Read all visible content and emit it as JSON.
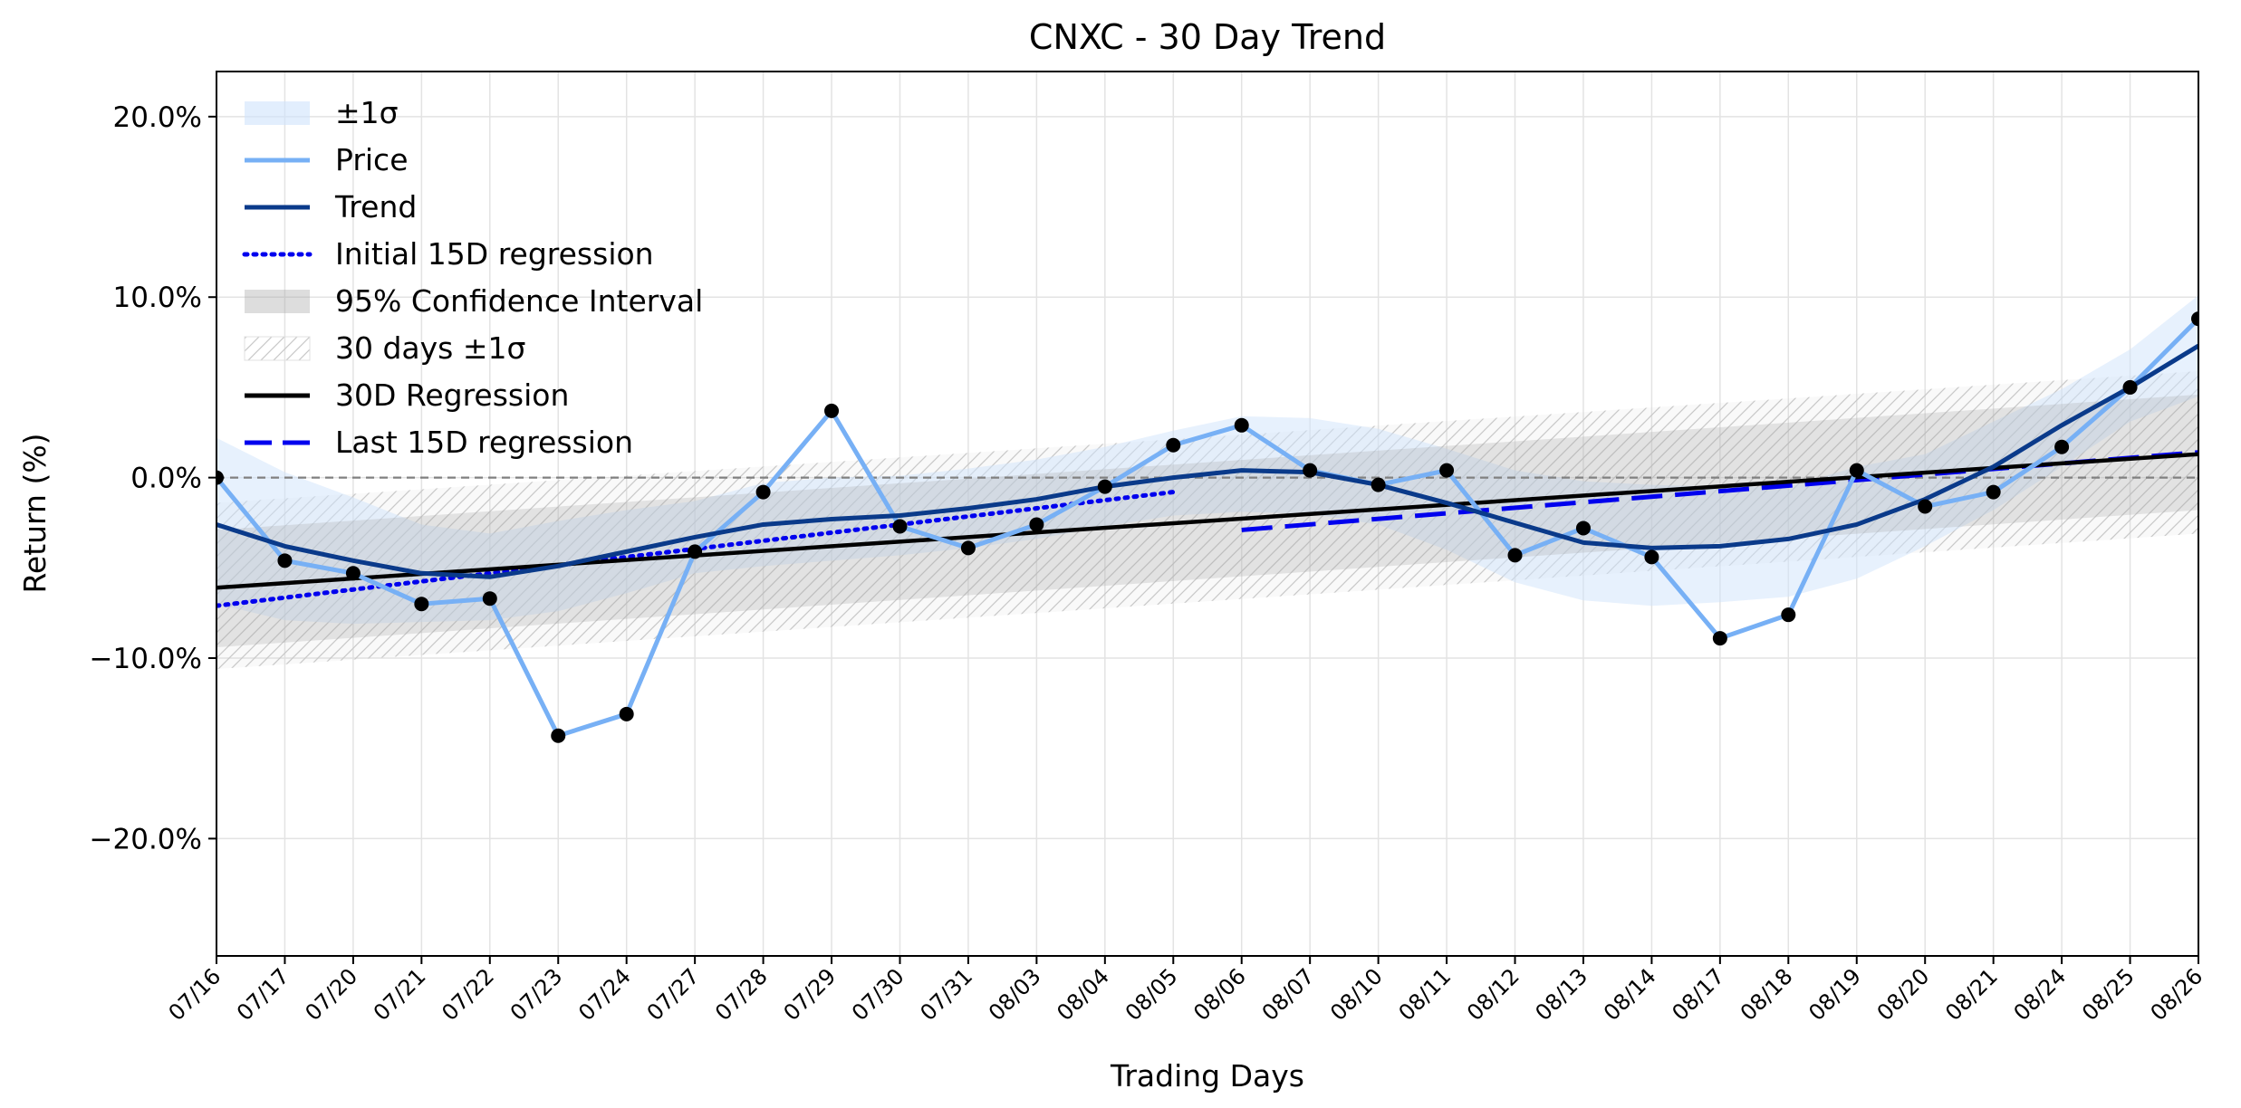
{
  "chart_data": {
    "type": "line",
    "title": "CNXC - 30 Day Trend",
    "xlabel": "Trading Days",
    "ylabel": "Return (%)",
    "ylim": [
      -26.5,
      22.5
    ],
    "yticks": [
      20,
      10,
      0,
      -10,
      -20
    ],
    "ytick_labels": [
      "20.0%",
      "10.0%",
      "0.0%",
      "−10.0%",
      "−20.0%"
    ],
    "grid": true,
    "legend_position": "top-left",
    "x": [
      "07/16",
      "07/17",
      "07/20",
      "07/21",
      "07/22",
      "07/23",
      "07/24",
      "07/27",
      "07/28",
      "07/29",
      "07/30",
      "07/31",
      "08/03",
      "08/04",
      "08/05",
      "08/06",
      "08/07",
      "08/10",
      "08/11",
      "08/12",
      "08/13",
      "08/14",
      "08/17",
      "08/18",
      "08/19",
      "08/20",
      "08/21",
      "08/24",
      "08/25",
      "08/26"
    ],
    "price": [
      0.0,
      -4.6,
      -5.3,
      -7.0,
      -6.7,
      -14.3,
      -13.1,
      -4.1,
      -0.8,
      3.7,
      -2.7,
      -3.9,
      -2.6,
      -0.5,
      1.8,
      2.9,
      0.4,
      -0.4,
      0.4,
      -4.3,
      -2.8,
      -4.4,
      -8.9,
      -7.6,
      0.4,
      -1.6,
      -0.8,
      1.7,
      5.0,
      8.8
    ],
    "trend": [
      -2.6,
      -3.8,
      -4.6,
      -5.3,
      -5.5,
      -4.9,
      -4.1,
      -3.3,
      -2.6,
      -2.3,
      -2.1,
      -1.7,
      -1.2,
      -0.5,
      0.0,
      0.4,
      0.3,
      -0.4,
      -1.4,
      -2.5,
      -3.6,
      -3.9,
      -3.8,
      -3.4,
      -2.6,
      -1.2,
      0.6,
      2.9,
      5.0,
      7.3
    ],
    "band_1sigma": [
      [
        -7.0,
        2.2
      ],
      [
        -7.9,
        0.3
      ],
      [
        -8.1,
        -1.1
      ],
      [
        -8.0,
        -2.6
      ],
      [
        -7.9,
        -3.1
      ],
      [
        -7.4,
        -2.4
      ],
      [
        -6.4,
        -1.8
      ],
      [
        -5.3,
        -1.3
      ],
      [
        -4.9,
        -0.3
      ],
      [
        -4.6,
        0.0
      ],
      [
        -4.3,
        0.1
      ],
      [
        -3.9,
        0.5
      ],
      [
        -3.4,
        1.0
      ],
      [
        -2.7,
        1.7
      ],
      [
        -2.1,
        2.6
      ],
      [
        -1.9,
        3.4
      ],
      [
        -2.0,
        3.3
      ],
      [
        -2.6,
        2.7
      ],
      [
        -4.0,
        1.6
      ],
      [
        -5.8,
        0.4
      ],
      [
        -6.8,
        -0.2
      ],
      [
        -7.1,
        -0.4
      ],
      [
        -6.9,
        -0.5
      ],
      [
        -6.6,
        -0.5
      ],
      [
        -5.6,
        0.6
      ],
      [
        -3.8,
        1.3
      ],
      [
        -1.8,
        3.1
      ],
      [
        0.6,
        4.9
      ],
      [
        3.1,
        7.1
      ],
      [
        4.5,
        10.1
      ]
    ],
    "initial_15d_regression": {
      "x_start": "07/16",
      "x_end": "08/05",
      "y_start": -7.1,
      "y_end": -0.8
    },
    "last_15d_regression": {
      "x_start": "08/06",
      "x_end": "08/26",
      "y_start": -2.9,
      "y_end": 1.4
    },
    "regression_30d": {
      "x_start": "07/16",
      "x_end": "08/26",
      "y_start": -6.1,
      "y_end": 1.3
    },
    "confidence_interval_95": {
      "lower_start": -9.4,
      "lower_end": -1.8,
      "upper_start": -2.9,
      "upper_end": 4.6
    },
    "band_30d_1sigma": {
      "lower_start": -10.6,
      "lower_end": -3.1,
      "upper_start": -1.4,
      "upper_end": 5.9
    },
    "zero_line": 0,
    "legend": [
      "±1σ",
      "Price",
      "Trend",
      "Initial 15D regression",
      "95% Confidence Interval",
      "30 days ±1σ",
      "30D Regression",
      "Last 15D regression"
    ],
    "colors": {
      "price": "#77b0f5",
      "trend": "#0a3a8a",
      "band_1sigma": "#ddeeff",
      "initial_regression": "#0000ee",
      "last_regression": "#0000ee",
      "regression_30d": "#000000",
      "ci95": "#bfbfbf",
      "band_30d": "#d9d9d9",
      "points": "#000000",
      "zero_line": "#808080"
    }
  }
}
